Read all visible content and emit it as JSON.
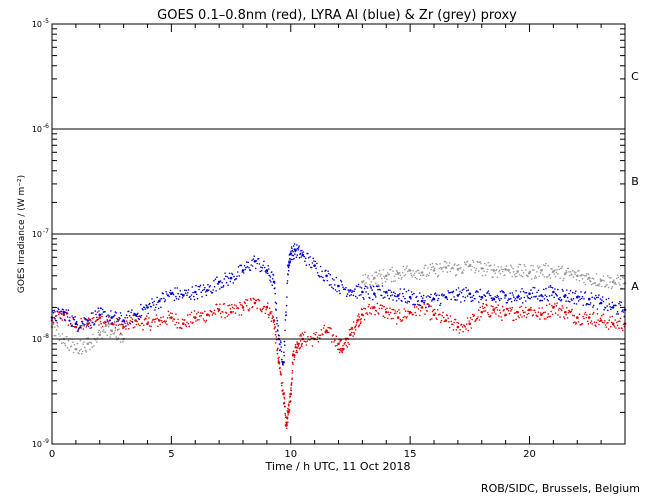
{
  "chart_data": {
    "type": "scatter",
    "title": "GOES 0.1–0.8nm (red), LYRA Al (blue) & Zr (grey) proxy",
    "xlabel": "Time / h UTC, 11 Oct 2018",
    "ylabel": "GOES Irradiance / (W m⁻²)",
    "xlim": [
      0,
      24
    ],
    "ylim": [
      1e-09,
      1e-05
    ],
    "yscale": "log",
    "grid": false,
    "x_ticks": [
      0,
      5,
      10,
      15,
      20
    ],
    "y_ticks": [
      {
        "value": 1e-09,
        "base": "10",
        "exp": "-9"
      },
      {
        "value": 1e-08,
        "base": "10",
        "exp": "-8"
      },
      {
        "value": 1e-07,
        "base": "10",
        "exp": "-7"
      },
      {
        "value": 1e-06,
        "base": "10",
        "exp": "-6"
      },
      {
        "value": 1e-05,
        "base": "10",
        "exp": "-5"
      }
    ],
    "class_lines": [
      1e-08,
      1e-07,
      1e-06
    ],
    "class_labels": [
      {
        "label": "A",
        "value": 3.2e-08
      },
      {
        "label": "B",
        "value": 3.2e-07
      },
      {
        "label": "C",
        "value": 3.2e-06
      }
    ],
    "series": [
      {
        "color": "#e00000",
        "x": [
          0,
          0.5,
          1,
          1.5,
          2,
          2.5,
          3,
          3.5,
          4,
          4.5,
          5,
          5.5,
          6,
          6.5,
          7,
          7.5,
          8,
          8.5,
          9,
          9.3,
          9.5,
          9.7,
          9.8,
          9.9,
          10,
          10.1,
          10.3,
          10.5,
          11,
          11.5,
          12,
          12.2,
          12.5,
          12.8,
          13,
          13.5,
          14,
          14.5,
          15,
          15.5,
          16,
          16.5,
          17,
          17.5,
          18,
          18.5,
          19,
          19.5,
          20,
          20.5,
          21,
          21.5,
          22,
          22.5,
          23,
          23.5,
          24
        ],
        "values": [
          1.5e-08,
          1.7e-08,
          1.3e-08,
          1.4e-08,
          1.6e-08,
          1.4e-08,
          1.3e-08,
          1.5e-08,
          1.4e-08,
          1.5e-08,
          1.6e-08,
          1.4e-08,
          1.6e-08,
          1.7e-08,
          1.9e-08,
          1.8e-08,
          2e-08,
          2.2e-08,
          2e-08,
          1.5e-08,
          6e-09,
          3e-09,
          1.5e-09,
          2e-09,
          3e-09,
          7e-09,
          9e-09,
          1e-08,
          1e-08,
          1.2e-08,
          9e-09,
          8e-09,
          1.1e-08,
          1.5e-08,
          1.7e-08,
          2e-08,
          1.8e-08,
          1.6e-08,
          1.8e-08,
          2e-08,
          1.7e-08,
          1.5e-08,
          1.3e-08,
          1.4e-08,
          1.8e-08,
          1.9e-08,
          1.7e-08,
          1.8e-08,
          1.9e-08,
          1.7e-08,
          2e-08,
          1.8e-08,
          1.6e-08,
          1.6e-08,
          1.5e-08,
          1.4e-08,
          1.4e-08
        ]
      },
      {
        "color": "#0000cc",
        "x": [
          0,
          0.5,
          1,
          1.5,
          2,
          2.5,
          3,
          3.5,
          4,
          4.5,
          5,
          5.5,
          6,
          6.5,
          7,
          7.5,
          8,
          8.5,
          9,
          9.3,
          9.5,
          9.7,
          9.9,
          10,
          10.2,
          10.5,
          11,
          11.5,
          12,
          12.5,
          13,
          13.5,
          14,
          14.5,
          15,
          15.5,
          16,
          16.5,
          17,
          17.5,
          18,
          18.5,
          19,
          19.5,
          20,
          20.5,
          21,
          21.5,
          22,
          22.5,
          23,
          23.5,
          24
        ],
        "values": [
          1.6e-08,
          1.8e-08,
          1.4e-08,
          1.5e-08,
          1.7e-08,
          1.6e-08,
          1.5e-08,
          1.7e-08,
          2e-08,
          2.3e-08,
          2.7e-08,
          2.6e-08,
          2.8e-08,
          2.9e-08,
          3.5e-08,
          3.8e-08,
          4.5e-08,
          5.5e-08,
          4.5e-08,
          3.5e-08,
          1e-08,
          6e-09,
          5e-08,
          6.5e-08,
          7e-08,
          6.3e-08,
          5e-08,
          4e-08,
          3.2e-08,
          2.9e-08,
          2.8e-08,
          2.7e-08,
          2.8e-08,
          2.6e-08,
          2.5e-08,
          2.3e-08,
          2.4e-08,
          2.5e-08,
          2.6e-08,
          2.7e-08,
          2.5e-08,
          2.4e-08,
          2.6e-08,
          2.5e-08,
          2.7e-08,
          2.6e-08,
          2.8e-08,
          2.6e-08,
          2.5e-08,
          2.4e-08,
          2.2e-08,
          2e-08,
          1.9e-08
        ]
      },
      {
        "color": "#999999",
        "x": [
          0,
          0.5,
          1,
          1.5,
          2,
          2.5,
          3,
          13,
          13.5,
          14,
          14.5,
          15,
          15.5,
          16,
          16.5,
          17,
          17.5,
          18,
          18.5,
          19,
          19.5,
          20,
          20.5,
          21,
          21.5,
          22,
          22.5,
          23,
          23.5,
          24
        ],
        "values": [
          1.3e-08,
          1e-08,
          8e-09,
          9e-09,
          1.1e-08,
          1.2e-08,
          1e-08,
          3.5e-08,
          3.8e-08,
          4e-08,
          4.2e-08,
          4.5e-08,
          4.3e-08,
          4.5e-08,
          4.8e-08,
          4.6e-08,
          5e-08,
          4.7e-08,
          4.5e-08,
          4.6e-08,
          4.4e-08,
          4.3e-08,
          4.5e-08,
          4.4e-08,
          4.2e-08,
          4e-08,
          3.8e-08,
          3.6e-08,
          3.5e-08,
          3.4e-08
        ]
      }
    ]
  },
  "footer": {
    "credit": "ROB/SIDC, Brussels, Belgium"
  }
}
